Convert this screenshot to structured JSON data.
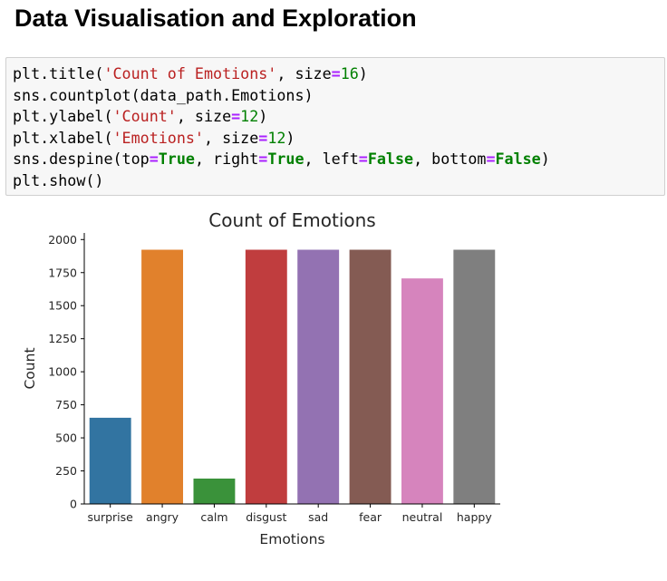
{
  "page": {
    "heading": "Data Visualisation and Exploration"
  },
  "code_cell": {
    "lines": [
      [
        {
          "t": "plt.title("
        },
        {
          "t": "'Count of Emotions'",
          "c": "str"
        },
        {
          "t": ", size"
        },
        {
          "t": "=",
          "c": "op"
        },
        {
          "t": "16",
          "c": "num"
        },
        {
          "t": ")"
        }
      ],
      [
        {
          "t": "sns.countplot(data_path.Emotions)"
        }
      ],
      [
        {
          "t": "plt.ylabel("
        },
        {
          "t": "'Count'",
          "c": "str"
        },
        {
          "t": ", size"
        },
        {
          "t": "=",
          "c": "op"
        },
        {
          "t": "12",
          "c": "num"
        },
        {
          "t": ")"
        }
      ],
      [
        {
          "t": "plt.xlabel("
        },
        {
          "t": "'Emotions'",
          "c": "str"
        },
        {
          "t": ", size"
        },
        {
          "t": "=",
          "c": "op"
        },
        {
          "t": "12",
          "c": "num"
        },
        {
          "t": ")"
        }
      ],
      [
        {
          "t": "sns.despine(top"
        },
        {
          "t": "=",
          "c": "op"
        },
        {
          "t": "True",
          "c": "kw"
        },
        {
          "t": ", right"
        },
        {
          "t": "=",
          "c": "op"
        },
        {
          "t": "True",
          "c": "kw"
        },
        {
          "t": ", left"
        },
        {
          "t": "=",
          "c": "op"
        },
        {
          "t": "False",
          "c": "kw"
        },
        {
          "t": ", bottom"
        },
        {
          "t": "=",
          "c": "op"
        },
        {
          "t": "False",
          "c": "kw"
        },
        {
          "t": ")"
        }
      ],
      [
        {
          "t": "plt.show()"
        }
      ]
    ]
  },
  "chart_data": {
    "type": "bar",
    "title": "Count of Emotions",
    "xlabel": "Emotions",
    "ylabel": "Count",
    "categories": [
      "surprise",
      "angry",
      "calm",
      "disgust",
      "sad",
      "fear",
      "neutral",
      "happy"
    ],
    "values": [
      652,
      1923,
      192,
      1923,
      1923,
      1923,
      1706,
      1923
    ],
    "colors": [
      "#3274a1",
      "#e1812c",
      "#3a923a",
      "#c03d3e",
      "#9372b2",
      "#845b53",
      "#d684bd",
      "#7f7f7f"
    ],
    "ylim": [
      0,
      2050
    ],
    "yticks": [
      0,
      250,
      500,
      750,
      1000,
      1250,
      1500,
      1750,
      2000
    ],
    "grid": false,
    "despine": {
      "top": true,
      "right": true,
      "left": false,
      "bottom": false
    }
  }
}
